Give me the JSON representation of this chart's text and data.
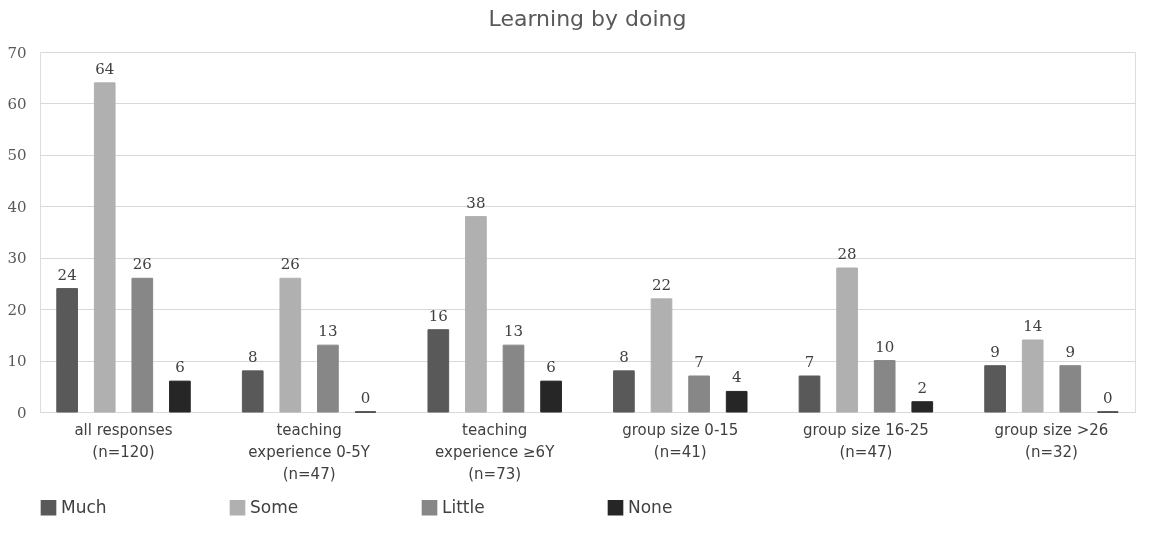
{
  "chart_data": {
    "type": "bar",
    "title": "Learning by doing",
    "categories": [
      "all responses\n(n=120)",
      "teaching\nexperience 0-5Y\n(n=47)",
      "teaching\nexperience ≥6Y\n(n=73)",
      "group size 0-15\n(n=41)",
      "group size 16-25\n(n=47)",
      "group size >26\n(n=32)"
    ],
    "series": [
      {
        "name": "Much",
        "color": "#595959",
        "values": [
          24,
          8,
          16,
          8,
          7,
          9
        ]
      },
      {
        "name": "Some",
        "color": "#b0b0b0",
        "values": [
          64,
          26,
          38,
          22,
          28,
          14
        ]
      },
      {
        "name": "Little",
        "color": "#878787",
        "values": [
          26,
          13,
          13,
          7,
          10,
          9
        ]
      },
      {
        "name": "None",
        "color": "#262626",
        "values": [
          6,
          0,
          6,
          4,
          2,
          0
        ]
      }
    ],
    "ylim": [
      0,
      70
    ],
    "yticks": [
      0,
      10,
      20,
      30,
      40,
      50,
      60,
      70
    ],
    "grid": "y",
    "legend": "bottom",
    "data_labels": true
  }
}
